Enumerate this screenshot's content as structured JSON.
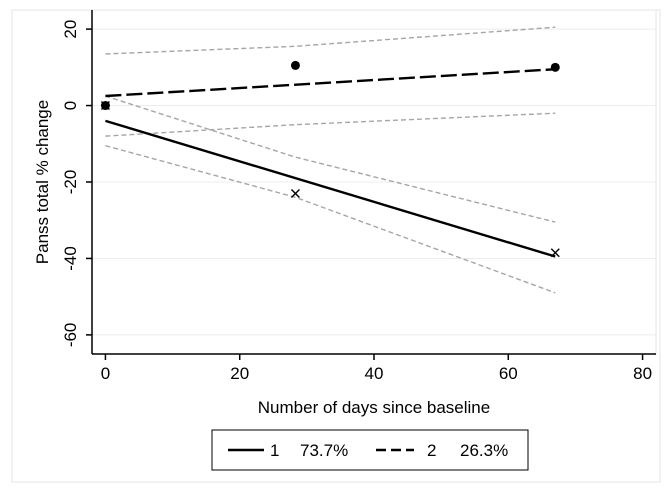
{
  "chart_data": {
    "type": "line",
    "title": "",
    "xlabel": "Number of days since baseline",
    "ylabel": "Panss total % change",
    "xlim": [
      -2,
      82
    ],
    "ylim": [
      -65,
      25
    ],
    "xticks": [
      0,
      20,
      40,
      60,
      80
    ],
    "yticks": [
      20,
      0,
      -20,
      -40,
      -60
    ],
    "xtick_labels": [
      "0",
      "20",
      "40",
      "60",
      "80"
    ],
    "ytick_labels": [
      "20",
      "0",
      "-20",
      "-40",
      "-60"
    ],
    "grid": true,
    "legend_position": "bottom-center",
    "colors": {
      "ci": "#a6a6a6",
      "grid": "#ececec",
      "line": "#000000"
    },
    "series": [
      {
        "name": "1",
        "legend_label": "1",
        "share_label": "73.7%",
        "style": "solid",
        "marker": "x",
        "points": [
          {
            "x": 0,
            "y": 0
          },
          {
            "x": 28.3,
            "y": -23
          },
          {
            "x": 67,
            "y": -38.5
          }
        ],
        "fit": [
          {
            "x": 0,
            "y": -4
          },
          {
            "x": 67,
            "y": -39.5
          }
        ],
        "ci_upper": [
          {
            "x": 0,
            "y": 2.5
          },
          {
            "x": 28.3,
            "y": -13.5
          },
          {
            "x": 67,
            "y": -30.5
          }
        ],
        "ci_lower": [
          {
            "x": 0,
            "y": -10.5
          },
          {
            "x": 28.3,
            "y": -24
          },
          {
            "x": 67,
            "y": -49
          }
        ]
      },
      {
        "name": "2",
        "legend_label": "2",
        "share_label": "26.3%",
        "style": "dashed",
        "marker": "circle",
        "points": [
          {
            "x": 0,
            "y": 0
          },
          {
            "x": 28.3,
            "y": 10.5
          },
          {
            "x": 67,
            "y": 10
          }
        ],
        "fit": [
          {
            "x": 0,
            "y": 2.5
          },
          {
            "x": 67,
            "y": 9.5
          }
        ],
        "ci_upper": [
          {
            "x": 0,
            "y": 13.5
          },
          {
            "x": 28.3,
            "y": 15.5
          },
          {
            "x": 67,
            "y": 20.5
          }
        ],
        "ci_lower": [
          {
            "x": 0,
            "y": -8
          },
          {
            "x": 28.3,
            "y": -5
          },
          {
            "x": 67,
            "y": -2
          }
        ]
      }
    ]
  }
}
